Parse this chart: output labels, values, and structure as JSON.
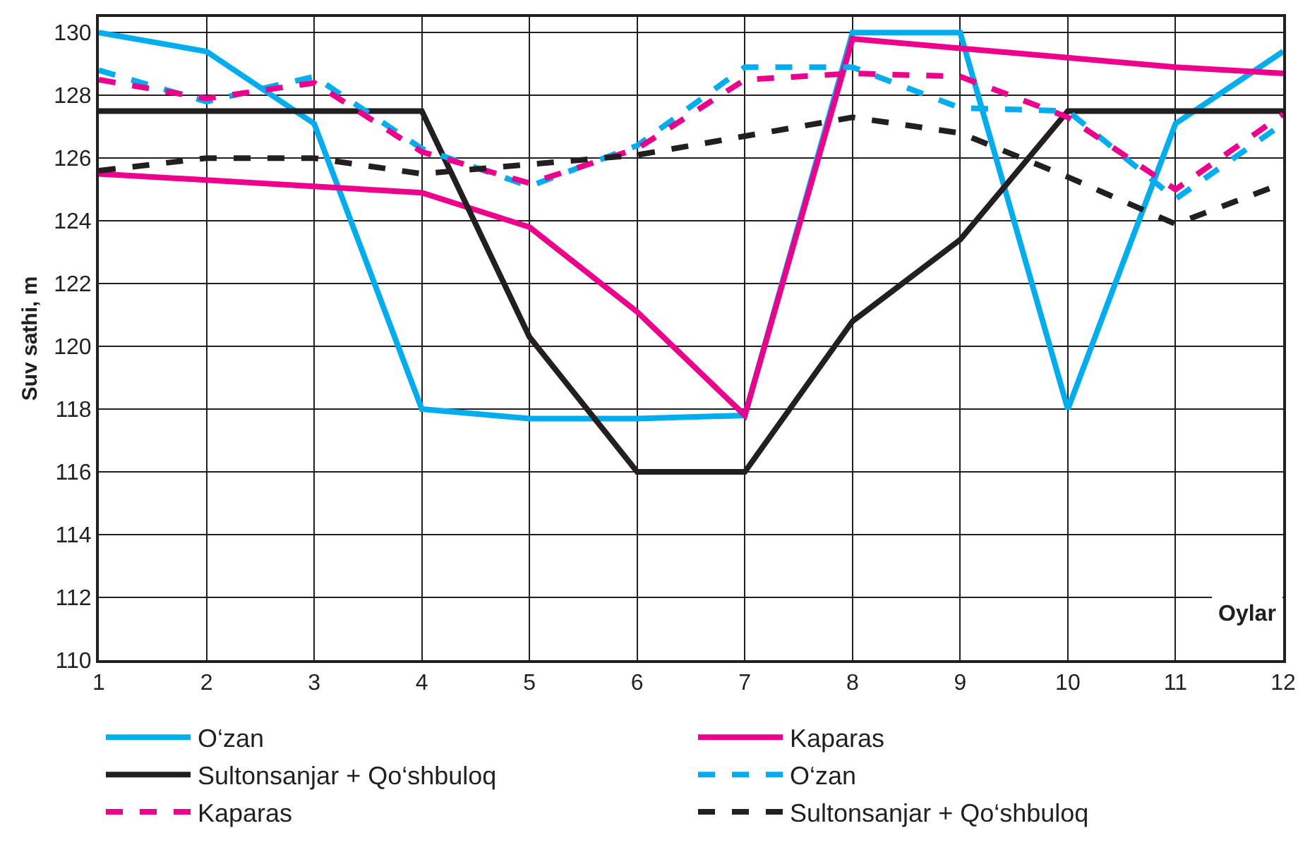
{
  "chart_data": {
    "type": "line",
    "xlabel": "Oylar",
    "ylabel": "Suv sathi, m",
    "x": [
      1,
      2,
      3,
      4,
      5,
      6,
      7,
      8,
      9,
      10,
      11,
      12
    ],
    "xlim": [
      1,
      12
    ],
    "xticks": [
      1,
      2,
      3,
      4,
      5,
      6,
      7,
      8,
      9,
      10,
      11,
      12
    ],
    "ylim": [
      110,
      130.5
    ],
    "yticks": [
      110,
      112,
      114,
      116,
      118,
      120,
      122,
      124,
      126,
      128,
      130
    ],
    "grid": true,
    "legend": "bottom",
    "marker": "none",
    "series": [
      {
        "name": "O‘zan",
        "color": "#00aeef",
        "line_style": "solid",
        "values": [
          130,
          129.4,
          127.1,
          118,
          117.7,
          117.7,
          117.8,
          130,
          130,
          118,
          127.1,
          129.4
        ]
      },
      {
        "name": "Kaparas",
        "color": "#ec008c",
        "line_style": "solid",
        "values": [
          125.5,
          125.3,
          125.1,
          124.9,
          123.8,
          121.1,
          117.8,
          129.8,
          129.5,
          129.2,
          128.9,
          128.7
        ]
      },
      {
        "name": "Sultonsanjar + Qo‘shbuloq",
        "color": "#231f20",
        "line_style": "solid",
        "values": [
          127.5,
          127.5,
          127.5,
          127.5,
          120.3,
          116,
          116,
          120.8,
          123.4,
          127.5,
          127.5,
          127.5
        ]
      },
      {
        "name": "O‘zan",
        "color": "#00aeef",
        "line_style": "dashed",
        "values": [
          128.8,
          127.8,
          128.6,
          126.3,
          125.1,
          126.4,
          128.9,
          128.9,
          127.6,
          127.5,
          124.7,
          127.1
        ]
      },
      {
        "name": "Kaparas",
        "color": "#ec008c",
        "line_style": "dashed",
        "values": [
          128.5,
          127.9,
          128.4,
          126.2,
          125.2,
          126.3,
          128.5,
          128.7,
          128.6,
          127.3,
          125.0,
          127.4
        ]
      },
      {
        "name": "Sultonsanjar + Qo‘shbuloq",
        "color": "#231f20",
        "line_style": "dashed",
        "values": [
          125.6,
          126.0,
          126.0,
          125.5,
          125.8,
          126.1,
          126.7,
          127.3,
          126.8,
          125.4,
          123.9,
          125.2
        ]
      }
    ]
  }
}
